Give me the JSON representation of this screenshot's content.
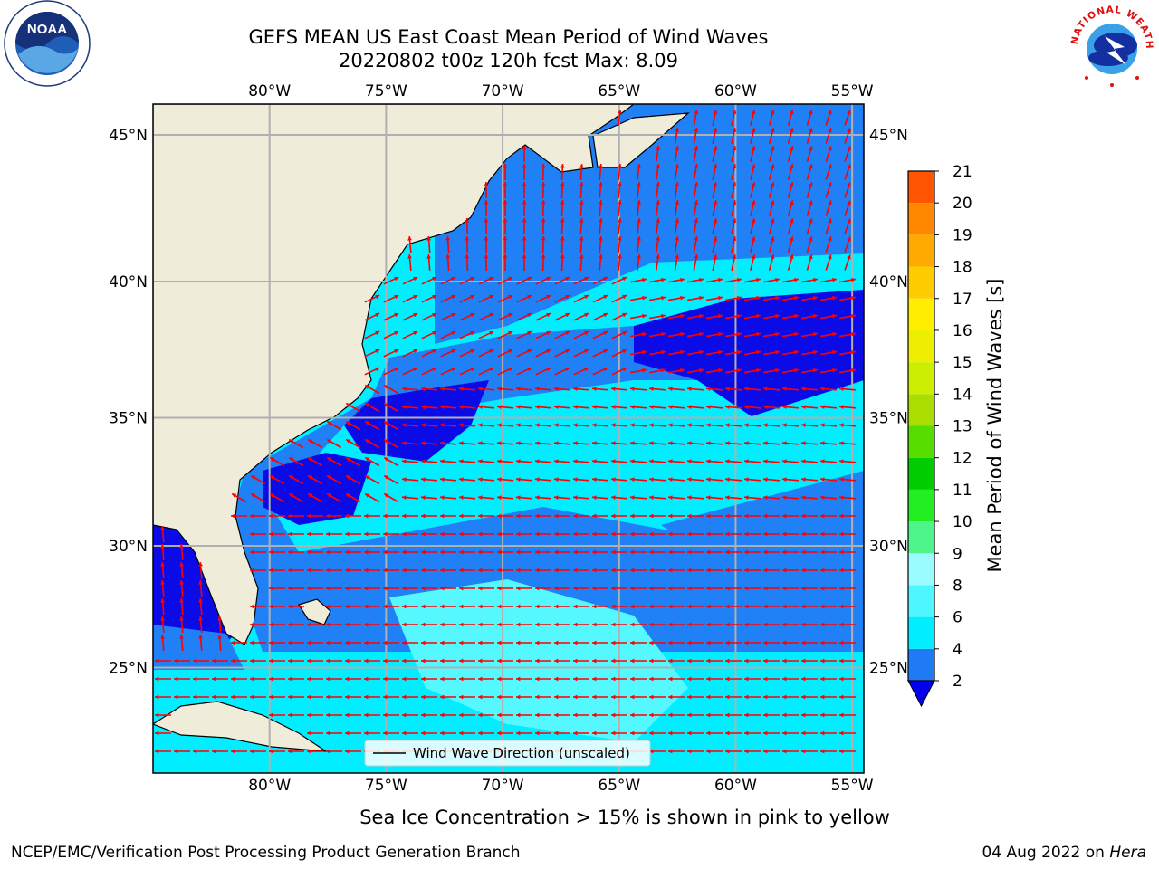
{
  "title_line1": "GEFS MEAN US East Coast Mean Period of Wind Waves",
  "title_line2": "20220802 t00z 120h fcst   Max: 8.09",
  "map": {
    "lon_ticks": [
      "80°W",
      "75°W",
      "70°W",
      "65°W",
      "60°W",
      "55°W"
    ],
    "lat_ticks": [
      "45°N",
      "40°N",
      "35°N",
      "30°N",
      "25°N"
    ],
    "lon_values": [
      -80,
      -75,
      -70,
      -65,
      -60,
      -55
    ],
    "lat_values": [
      45,
      40,
      35,
      30,
      25
    ],
    "lon_range": [
      -85,
      -54.5
    ],
    "lat_range": [
      20.5,
      46
    ],
    "legend_label": "Wind Wave Direction (unscaled)",
    "arrow_color": "#ff0000",
    "land_color": "#efedd9"
  },
  "colorbar": {
    "label": "Mean Period of Wind Waves [s]",
    "levels": [
      2,
      4,
      6,
      8,
      9,
      10,
      11,
      12,
      13,
      14,
      15,
      16,
      17,
      18,
      19,
      20,
      21
    ],
    "tick_labels": [
      "2",
      "4",
      "6",
      "8",
      "9",
      "10",
      "11",
      "12",
      "13",
      "14",
      "15",
      "16",
      "17",
      "18",
      "19",
      "20",
      "21"
    ],
    "colors": [
      "#1f7bf5",
      "#00eeff",
      "#4cf7ff",
      "#9afcff",
      "#4df58a",
      "#22ee22",
      "#00cc00",
      "#55dd00",
      "#aadd00",
      "#ccee00",
      "#eeee00",
      "#ffee00",
      "#ffcc00",
      "#ffaa00",
      "#ff8800",
      "#ff5500",
      "#ff2200",
      "#ee0000"
    ],
    "under_color": "#0000ee"
  },
  "field_colors": {
    "deep": "#0b0be8",
    "mid": "#2080f5",
    "light": "#00eeff",
    "pale": "#55f8ff"
  },
  "footer": {
    "note": "Sea Ice Concentration > 15% is shown in pink to yellow",
    "left": "NCEP/EMC/Verification Post Processing Product Generation Branch",
    "right_date": "04 Aug 2022 on ",
    "right_host": "Hera"
  },
  "logos": {
    "left_text": "NOAA",
    "right_text": "NATIONAL WEATHER SERVICE"
  }
}
